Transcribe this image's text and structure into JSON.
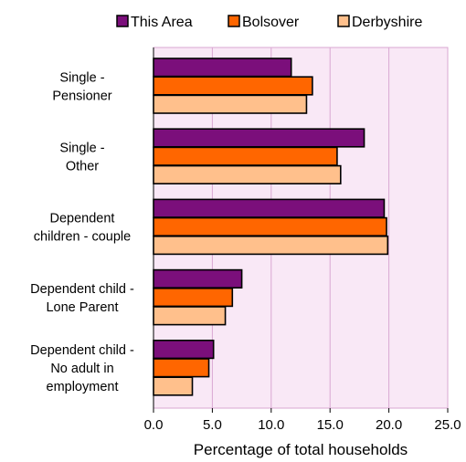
{
  "chart_data": {
    "type": "bar",
    "orientation": "horizontal",
    "categories": [
      [
        "Single -",
        "Pensioner"
      ],
      [
        "Single -",
        "Other"
      ],
      [
        "Dependent",
        "children - couple"
      ],
      [
        "Dependent child -",
        "Lone Parent"
      ],
      [
        "Dependent child -",
        "No adult in",
        "employment"
      ]
    ],
    "series": [
      {
        "name": "This Area",
        "color": "#7B0F7B",
        "values": [
          11.7,
          17.9,
          19.6,
          7.5,
          5.1
        ]
      },
      {
        "name": "Bolsover",
        "color": "#FF6600",
        "values": [
          13.5,
          15.6,
          19.8,
          6.7,
          4.7
        ]
      },
      {
        "name": "Derbyshire",
        "color": "#FFC08C",
        "values": [
          13.0,
          15.9,
          19.9,
          6.1,
          3.3
        ]
      }
    ],
    "xlim": [
      0,
      25
    ],
    "xticks": [
      "0.0",
      "5.0",
      "10.0",
      "15.0",
      "20.0",
      "25.0"
    ],
    "xlabel": "Percentage of total households",
    "ylabel": "",
    "title": "",
    "grid": "vertical",
    "legend": "top",
    "plot_background": "#F9E8F6",
    "gridline_color": "#D9A7D2"
  }
}
